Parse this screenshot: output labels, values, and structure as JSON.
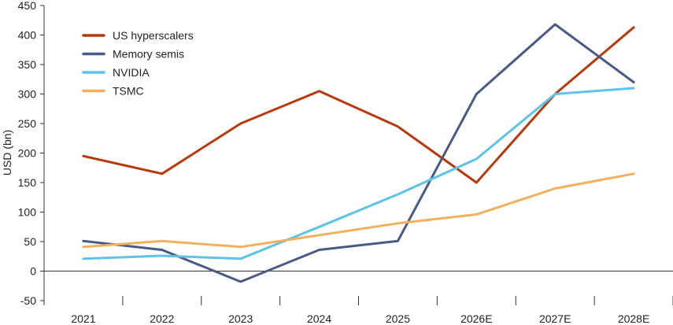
{
  "chart_data": {
    "type": "line",
    "title": "",
    "xlabel": "",
    "ylabel": "USD (bn)",
    "categories": [
      "2021",
      "2022",
      "2023",
      "2024",
      "2025",
      "2026E",
      "2027E",
      "2028E"
    ],
    "ylim": [
      -50,
      450
    ],
    "yticks": [
      -50,
      0,
      50,
      100,
      150,
      200,
      250,
      300,
      350,
      400,
      450
    ],
    "grid": false,
    "legend_position": "top-left",
    "series": [
      {
        "name": "US hyperscalers",
        "color": "#b83a0c",
        "values": [
          195,
          165,
          250,
          305,
          245,
          150,
          300,
          413
        ]
      },
      {
        "name": "Memory semis",
        "color": "#4a5a86",
        "values": [
          51,
          36,
          -18,
          36,
          51,
          300,
          418,
          320
        ]
      },
      {
        "name": "NVIDIA",
        "color": "#5ec3e8",
        "values": [
          21,
          26,
          21,
          75,
          130,
          190,
          300,
          310
        ]
      },
      {
        "name": "TSMC",
        "color": "#f2b05e",
        "values": [
          41,
          51,
          41,
          61,
          81,
          96,
          140,
          165
        ]
      }
    ]
  }
}
